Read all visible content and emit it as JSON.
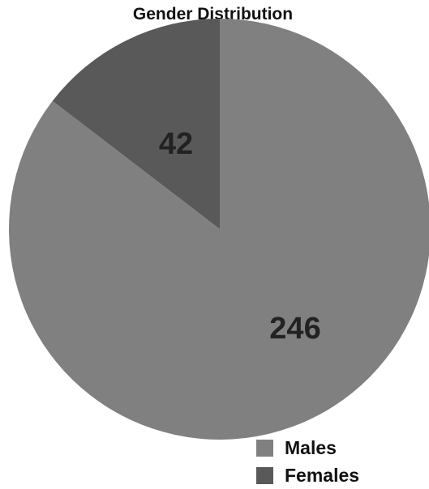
{
  "chart_data": {
    "type": "pie",
    "title": "Gender Distribution",
    "slices": [
      {
        "label": "Males",
        "value": 246,
        "color": "#808080"
      },
      {
        "label": "Females",
        "value": 42,
        "color": "#595959"
      }
    ],
    "legend_position": "bottom-right",
    "start_angle": "12 o'clock, clockwise"
  }
}
